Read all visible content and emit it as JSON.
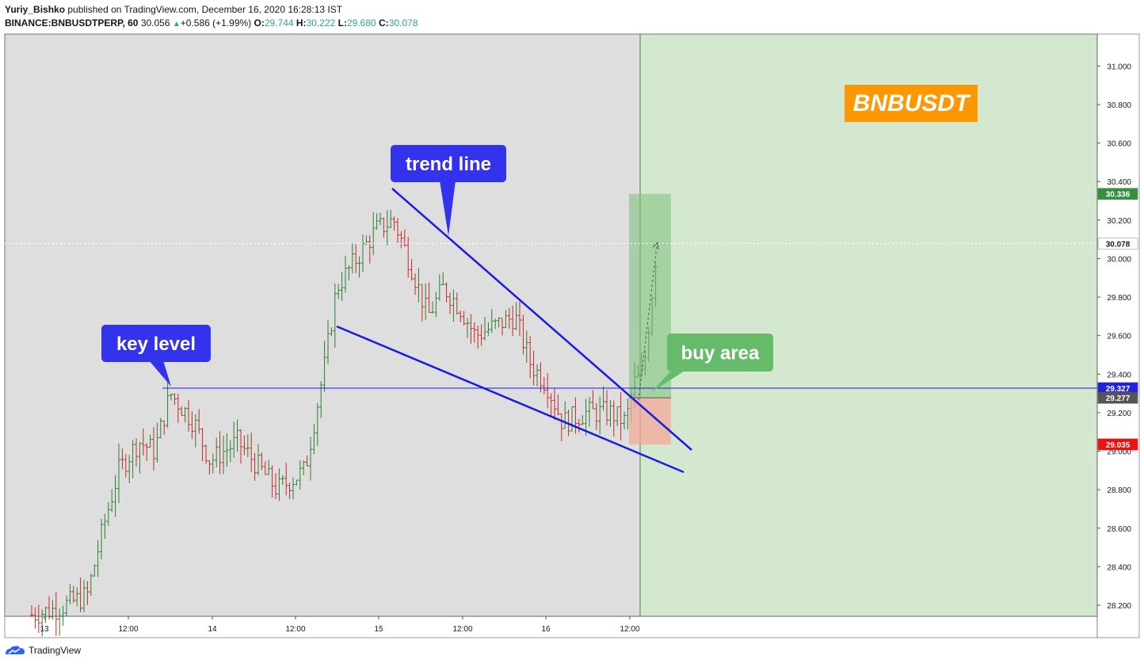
{
  "header": {
    "author": "Yuriy_Bishko",
    "published_text": "published on TradingView.com, December 16, 2020 16:28:13 IST",
    "symbol": "BINANCE:BNBUSDTPERP, 60",
    "last": "30.056",
    "change_arrow": "▲",
    "change": "+0.586 (+1.99%)",
    "o_label": "O:",
    "o_value": "29.744",
    "h_label": "H:",
    "h_value": "30.222",
    "l_label": "L:",
    "l_value": "29.680",
    "c_label": "C:",
    "c_value": "30.078"
  },
  "footer": {
    "brand": "TradingView",
    "logo_icon": "tradingview-logo-icon"
  },
  "chart_data": {
    "type": "ohlc-bar",
    "instrument": "BINANCE:BNBUSDTPERP",
    "interval": "60",
    "ylim": [
      28.12,
      31.15
    ],
    "y_ticks": [
      "28.200",
      "28.400",
      "28.600",
      "28.800",
      "29.000",
      "29.200",
      "29.400",
      "29.600",
      "29.800",
      "30.000",
      "30.200",
      "30.400",
      "30.600",
      "30.800",
      "31.000"
    ],
    "x_ticks": [
      "13",
      "12:00",
      "14",
      "12:00",
      "15",
      "12:00",
      "16",
      "12:00"
    ],
    "price_labels": [
      {
        "text": "30.336",
        "price": 30.336,
        "color": "#388e3c"
      },
      {
        "text": "30.078",
        "price": 30.078,
        "color": "#ffffff",
        "text_color": "#131722"
      },
      {
        "text": "29.327",
        "price": 29.327,
        "color": "#2222dd"
      },
      {
        "text": "29.277",
        "price": 29.277,
        "color": "#555555"
      },
      {
        "text": "29.035",
        "price": 29.035,
        "color": "#ee1111"
      }
    ],
    "key_level": 29.327,
    "annotations": [
      {
        "text": "trend line",
        "bg": "#3333ee"
      },
      {
        "text": "key level",
        "bg": "#3333ee"
      },
      {
        "text": "buy area",
        "bg": "#66bb6a"
      },
      {
        "text": "BNBUSDT",
        "bg": "#ff9800"
      }
    ],
    "trade_box": {
      "entry": 29.277,
      "target": 30.336,
      "stop": 29.035
    },
    "colors": {
      "up": "#26a69a",
      "down": "#ef5350",
      "pane": "#dedede",
      "future_zone": "#d4e8cf",
      "lines": "#1a1ae6"
    }
  }
}
